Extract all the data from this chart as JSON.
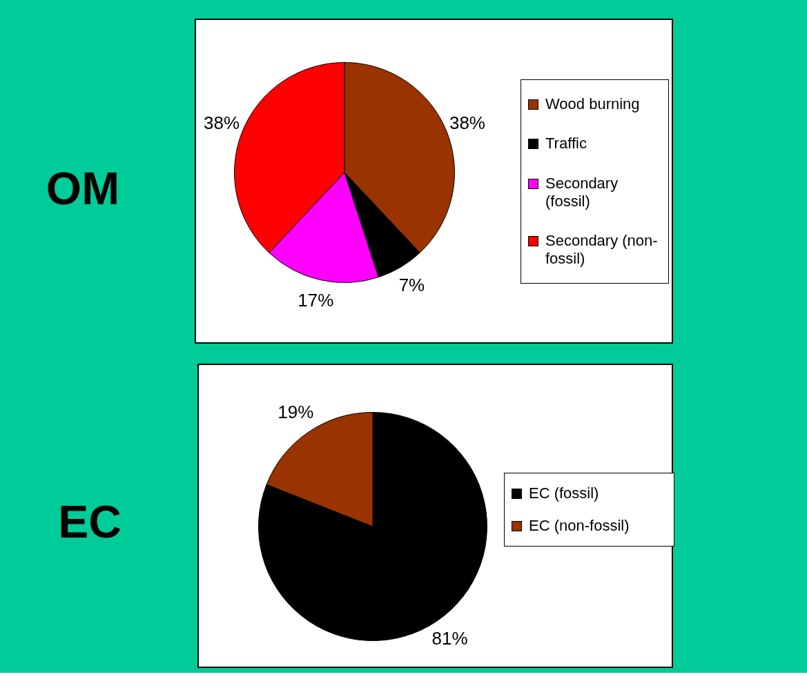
{
  "chart_data": [
    {
      "type": "pie",
      "title": "OM",
      "categories": [
        "Wood burning",
        "Traffic",
        "Secondary (fossil)",
        "Secondary (non-fossil)"
      ],
      "values": [
        38,
        7,
        17,
        38
      ],
      "colors": [
        "#993300",
        "#000000",
        "#ff00ff",
        "#ff0000"
      ],
      "value_labels": [
        "38%",
        "7%",
        "17%",
        "38%"
      ],
      "legend": "right"
    },
    {
      "type": "pie",
      "title": "EC",
      "categories": [
        "EC (fossil)",
        "EC (non-fossil)"
      ],
      "values": [
        81,
        19
      ],
      "colors": [
        "#000000",
        "#993300"
      ],
      "value_labels": [
        "81%",
        "19%"
      ],
      "legend": "right"
    }
  ]
}
